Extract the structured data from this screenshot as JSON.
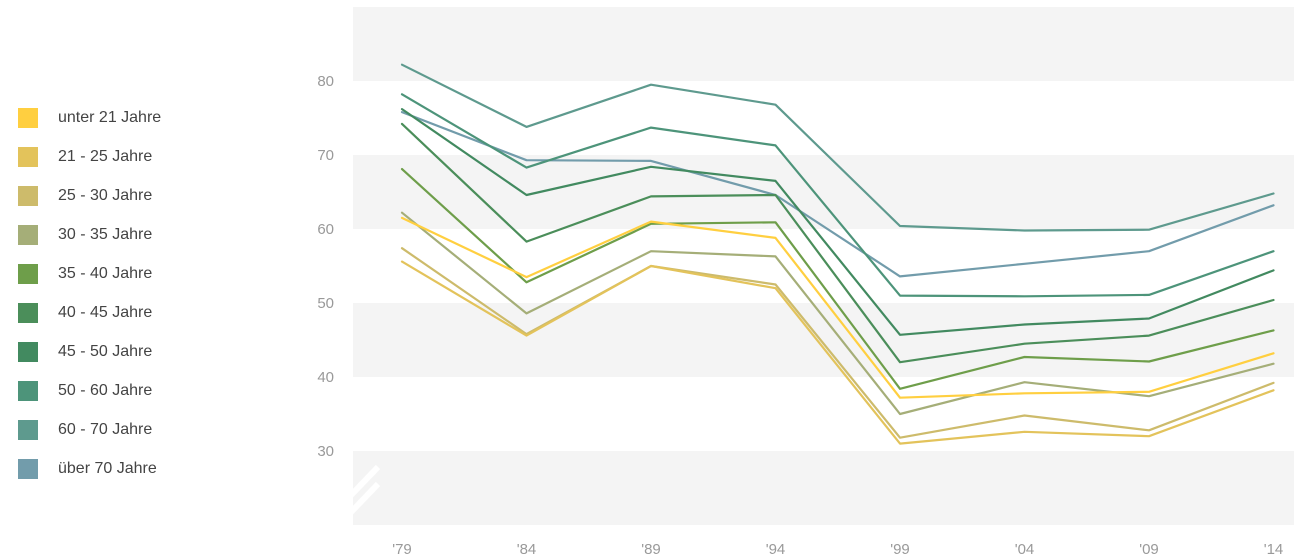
{
  "chart_data": {
    "type": "line",
    "title": "",
    "xlabel": "",
    "ylabel": "",
    "x": [
      "'79",
      "'84",
      "'89",
      "'94",
      "'99",
      "'04",
      "'09",
      "'14"
    ],
    "ylim": [
      20,
      90
    ],
    "yticks": [
      30,
      40,
      50,
      60,
      70,
      80
    ],
    "y_axis_break": true,
    "grid": "horizontal bands",
    "legend_position": "left",
    "series": [
      {
        "name": "unter 21 Jahre",
        "color": "#ffcf40",
        "values": [
          61.5,
          53.5,
          61.0,
          58.8,
          37.2,
          37.8,
          38.0,
          43.2
        ]
      },
      {
        "name": "21 - 25 Jahre",
        "color": "#e3c35b",
        "values": [
          55.6,
          45.6,
          55.0,
          52.0,
          31.0,
          32.6,
          32.0,
          38.2
        ]
      },
      {
        "name": "25 - 30 Jahre",
        "color": "#cdbb6b",
        "values": [
          57.4,
          45.8,
          55.0,
          52.5,
          31.8,
          34.8,
          32.8,
          39.2
        ]
      },
      {
        "name": "30 - 35 Jahre",
        "color": "#a5ae78",
        "values": [
          62.2,
          48.6,
          57.0,
          56.3,
          35.0,
          39.3,
          37.4,
          41.8
        ]
      },
      {
        "name": "35 - 40 Jahre",
        "color": "#6e9e4a",
        "values": [
          68.1,
          52.8,
          60.7,
          60.9,
          38.4,
          42.7,
          42.1,
          46.3
        ]
      },
      {
        "name": "40 - 45 Jahre",
        "color": "#4b8e5a",
        "values": [
          74.2,
          58.3,
          64.4,
          64.6,
          42.0,
          44.5,
          45.6,
          50.4
        ]
      },
      {
        "name": "45 - 50 Jahre",
        "color": "#428a60",
        "values": [
          76.2,
          64.6,
          68.4,
          66.5,
          45.7,
          47.1,
          47.9,
          54.4
        ]
      },
      {
        "name": "50 - 60 Jahre",
        "color": "#4d947a",
        "values": [
          78.2,
          68.3,
          73.7,
          71.3,
          51.0,
          50.9,
          51.1,
          57.0
        ]
      },
      {
        "name": "60 - 70 Jahre",
        "color": "#5e9a8e",
        "values": [
          82.2,
          73.8,
          79.5,
          76.8,
          60.4,
          59.8,
          59.9,
          64.8
        ]
      },
      {
        "name": "über 70 Jahre",
        "color": "#729cab",
        "values": [
          75.8,
          69.3,
          69.2,
          64.6,
          53.6,
          55.3,
          57.0,
          63.2
        ]
      }
    ]
  }
}
